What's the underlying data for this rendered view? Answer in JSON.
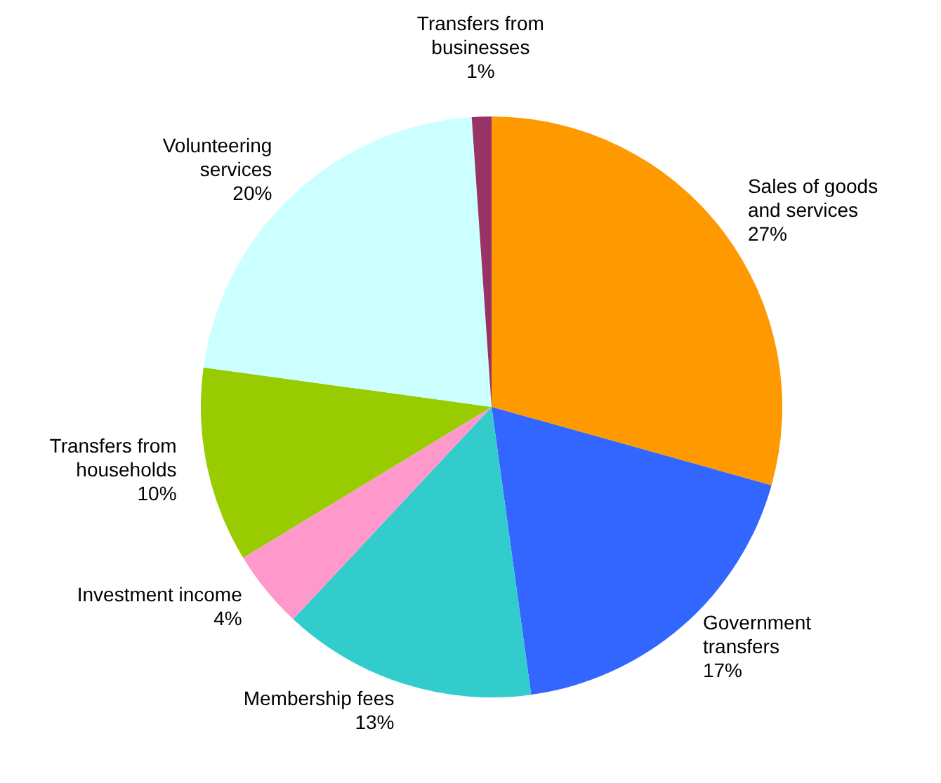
{
  "chart_data": {
    "type": "pie",
    "categories": [
      "Sales of goods and services",
      "Government transfers",
      "Membership fees",
      "Investment income",
      "Transfers from households",
      "Volunteering services",
      "Transfers from businesses"
    ],
    "values": [
      27,
      17,
      13,
      4,
      10,
      20,
      1
    ],
    "value_labels": [
      "27%",
      "17%",
      "13%",
      "4%",
      "10%",
      "20%",
      "1%"
    ],
    "colors": [
      "#ff9900",
      "#3366ff",
      "#33cccc",
      "#ff99cc",
      "#99cc00",
      "#ccffff",
      "#993366"
    ]
  }
}
